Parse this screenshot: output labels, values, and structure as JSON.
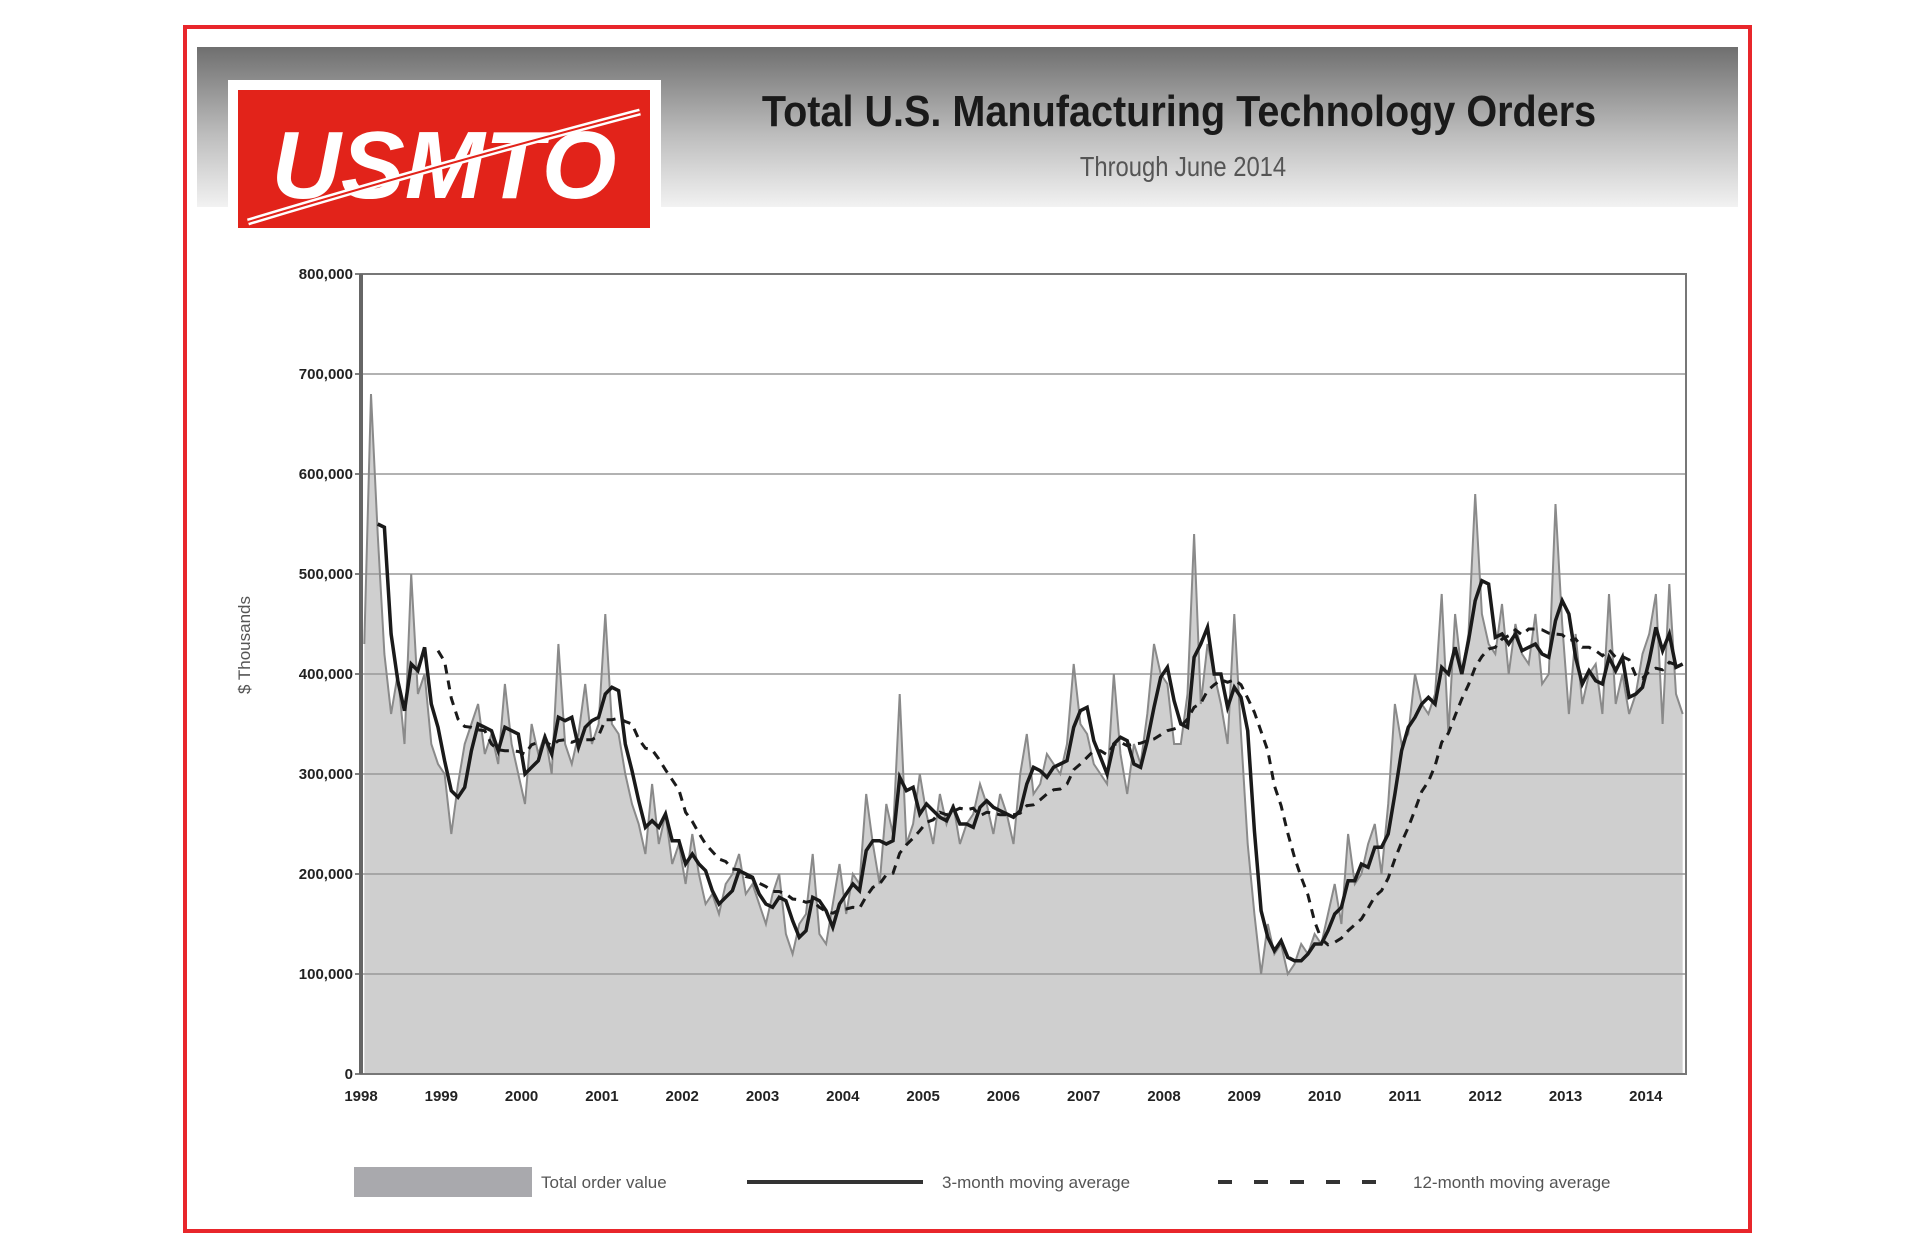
{
  "header": {
    "logo_text": "USMTO",
    "title": "Total U.S. Manufacturing Technology Orders",
    "subtitle": "Through June 2014"
  },
  "colors": {
    "frame": "#e8262b",
    "logo": "#e2231a",
    "area": "#cfcfcf",
    "total_line": "#8a8a8a",
    "avg_line": "#1a1a1a"
  },
  "chart_data": {
    "type": "area",
    "title": "Total U.S. Manufacturing Technology Orders",
    "subtitle": "Through June 2014",
    "ylabel": "$ Thousands",
    "xlabel": "",
    "ylim": [
      0,
      800000
    ],
    "xlim": [
      1998,
      2014.5
    ],
    "grid": true,
    "legend_position": "bottom",
    "y_ticks": [
      "0",
      "100,000",
      "200,000",
      "300,000",
      "400,000",
      "500,000",
      "600,000",
      "700,000",
      "800,000"
    ],
    "x_ticks": [
      "1998",
      "1999",
      "2000",
      "2001",
      "2002",
      "2003",
      "2004",
      "2005",
      "2006",
      "2007",
      "2008",
      "2009",
      "2010",
      "2011",
      "2012",
      "2013",
      "2014"
    ],
    "start": "1998-01",
    "frequency": "monthly",
    "series": [
      {
        "name": "Total order value",
        "style": "filled-area",
        "values": [
          430000,
          680000,
          540000,
          420000,
          360000,
          400000,
          330000,
          500000,
          380000,
          400000,
          330000,
          310000,
          300000,
          240000,
          290000,
          330000,
          350000,
          370000,
          320000,
          340000,
          310000,
          390000,
          330000,
          300000,
          270000,
          350000,
          320000,
          340000,
          300000,
          430000,
          330000,
          310000,
          340000,
          390000,
          330000,
          350000,
          460000,
          350000,
          340000,
          300000,
          270000,
          250000,
          220000,
          290000,
          230000,
          260000,
          210000,
          230000,
          190000,
          240000,
          200000,
          170000,
          180000,
          160000,
          190000,
          200000,
          220000,
          180000,
          190000,
          170000,
          150000,
          180000,
          200000,
          140000,
          120000,
          150000,
          160000,
          220000,
          140000,
          130000,
          170000,
          210000,
          160000,
          200000,
          190000,
          280000,
          230000,
          190000,
          270000,
          240000,
          380000,
          230000,
          250000,
          300000,
          260000,
          230000,
          280000,
          250000,
          270000,
          230000,
          250000,
          260000,
          290000,
          270000,
          240000,
          280000,
          260000,
          230000,
          300000,
          340000,
          280000,
          290000,
          320000,
          310000,
          300000,
          330000,
          410000,
          350000,
          340000,
          310000,
          300000,
          290000,
          400000,
          320000,
          280000,
          330000,
          310000,
          360000,
          430000,
          400000,
          390000,
          330000,
          330000,
          380000,
          540000,
          370000,
          430000,
          400000,
          370000,
          330000,
          460000,
          340000,
          230000,
          160000,
          100000,
          150000,
          120000,
          130000,
          100000,
          110000,
          130000,
          120000,
          140000,
          130000,
          160000,
          190000,
          150000,
          240000,
          190000,
          200000,
          230000,
          250000,
          200000,
          270000,
          370000,
          330000,
          340000,
          400000,
          370000,
          360000,
          380000,
          480000,
          340000,
          460000,
          400000,
          440000,
          580000,
          460000,
          430000,
          420000,
          470000,
          400000,
          450000,
          420000,
          410000,
          460000,
          390000,
          400000,
          570000,
          450000,
          360000,
          440000,
          370000,
          400000,
          410000,
          360000,
          480000,
          370000,
          400000,
          360000,
          380000,
          420000,
          440000,
          480000,
          350000,
          490000,
          380000,
          360000
        ]
      },
      {
        "name": "3-month moving average",
        "style": "solid",
        "window": 3
      },
      {
        "name": "12-month moving average",
        "style": "dashed",
        "window": 12
      }
    ]
  }
}
